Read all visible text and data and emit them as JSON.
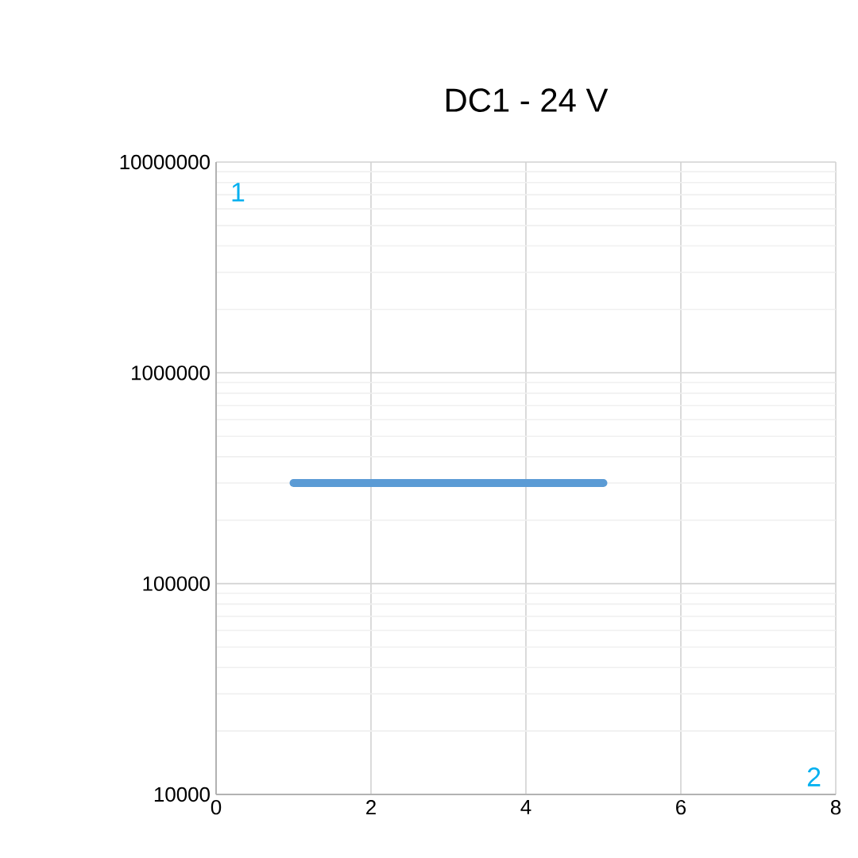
{
  "chart_data": {
    "type": "line",
    "title": "DC1 - 24 V",
    "x": [
      1,
      5
    ],
    "values": [
      300000,
      300000
    ],
    "color": "#5b9bd5",
    "xlim": [
      0,
      8
    ],
    "xticks": [
      0,
      2,
      4,
      6,
      8
    ],
    "ylim": [
      10000,
      10000000
    ],
    "yticks": [
      10000,
      100000,
      1000000,
      10000000
    ],
    "log": "y",
    "grid": true,
    "marker": "none",
    "line_style": "solid",
    "annotations": [
      "1",
      "2"
    ]
  }
}
